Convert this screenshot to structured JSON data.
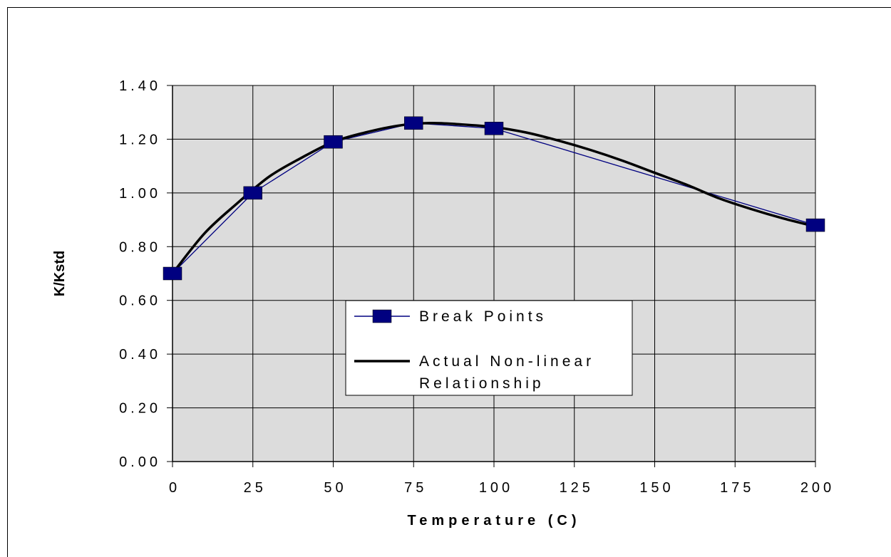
{
  "chart_data": {
    "type": "line",
    "title": "",
    "xlabel": "Temperature (C)",
    "ylabel": "K/Kstd",
    "xlim": [
      0,
      200
    ],
    "ylim": [
      0,
      1.4
    ],
    "x_ticks": [
      "0",
      "25",
      "50",
      "75",
      "100",
      "125",
      "150",
      "175",
      "200"
    ],
    "y_ticks": [
      "0.00",
      "0.20",
      "0.40",
      "0.60",
      "0.80",
      "1.00",
      "1.20",
      "1.40"
    ],
    "grid": true,
    "legend_position": "center",
    "plot_background": "#dcdcdc",
    "series": [
      {
        "name": "Break Points",
        "color": "#000080",
        "marker": "square",
        "x": [
          0,
          25,
          50,
          75,
          100,
          200
        ],
        "y": [
          0.7,
          1.0,
          1.19,
          1.26,
          1.24,
          0.88
        ]
      },
      {
        "name": "Actual Non-linear Relationship",
        "color": "#000000",
        "marker": "none",
        "x": [
          0,
          10,
          20,
          30,
          40,
          50,
          60,
          70,
          80,
          90,
          100,
          110,
          120,
          130,
          140,
          150,
          160,
          170,
          180,
          190,
          200
        ],
        "y": [
          0.7,
          0.85,
          0.96,
          1.06,
          1.13,
          1.19,
          1.225,
          1.25,
          1.26,
          1.255,
          1.245,
          1.225,
          1.195,
          1.16,
          1.12,
          1.075,
          1.03,
          0.98,
          0.94,
          0.905,
          0.875
        ]
      }
    ]
  }
}
